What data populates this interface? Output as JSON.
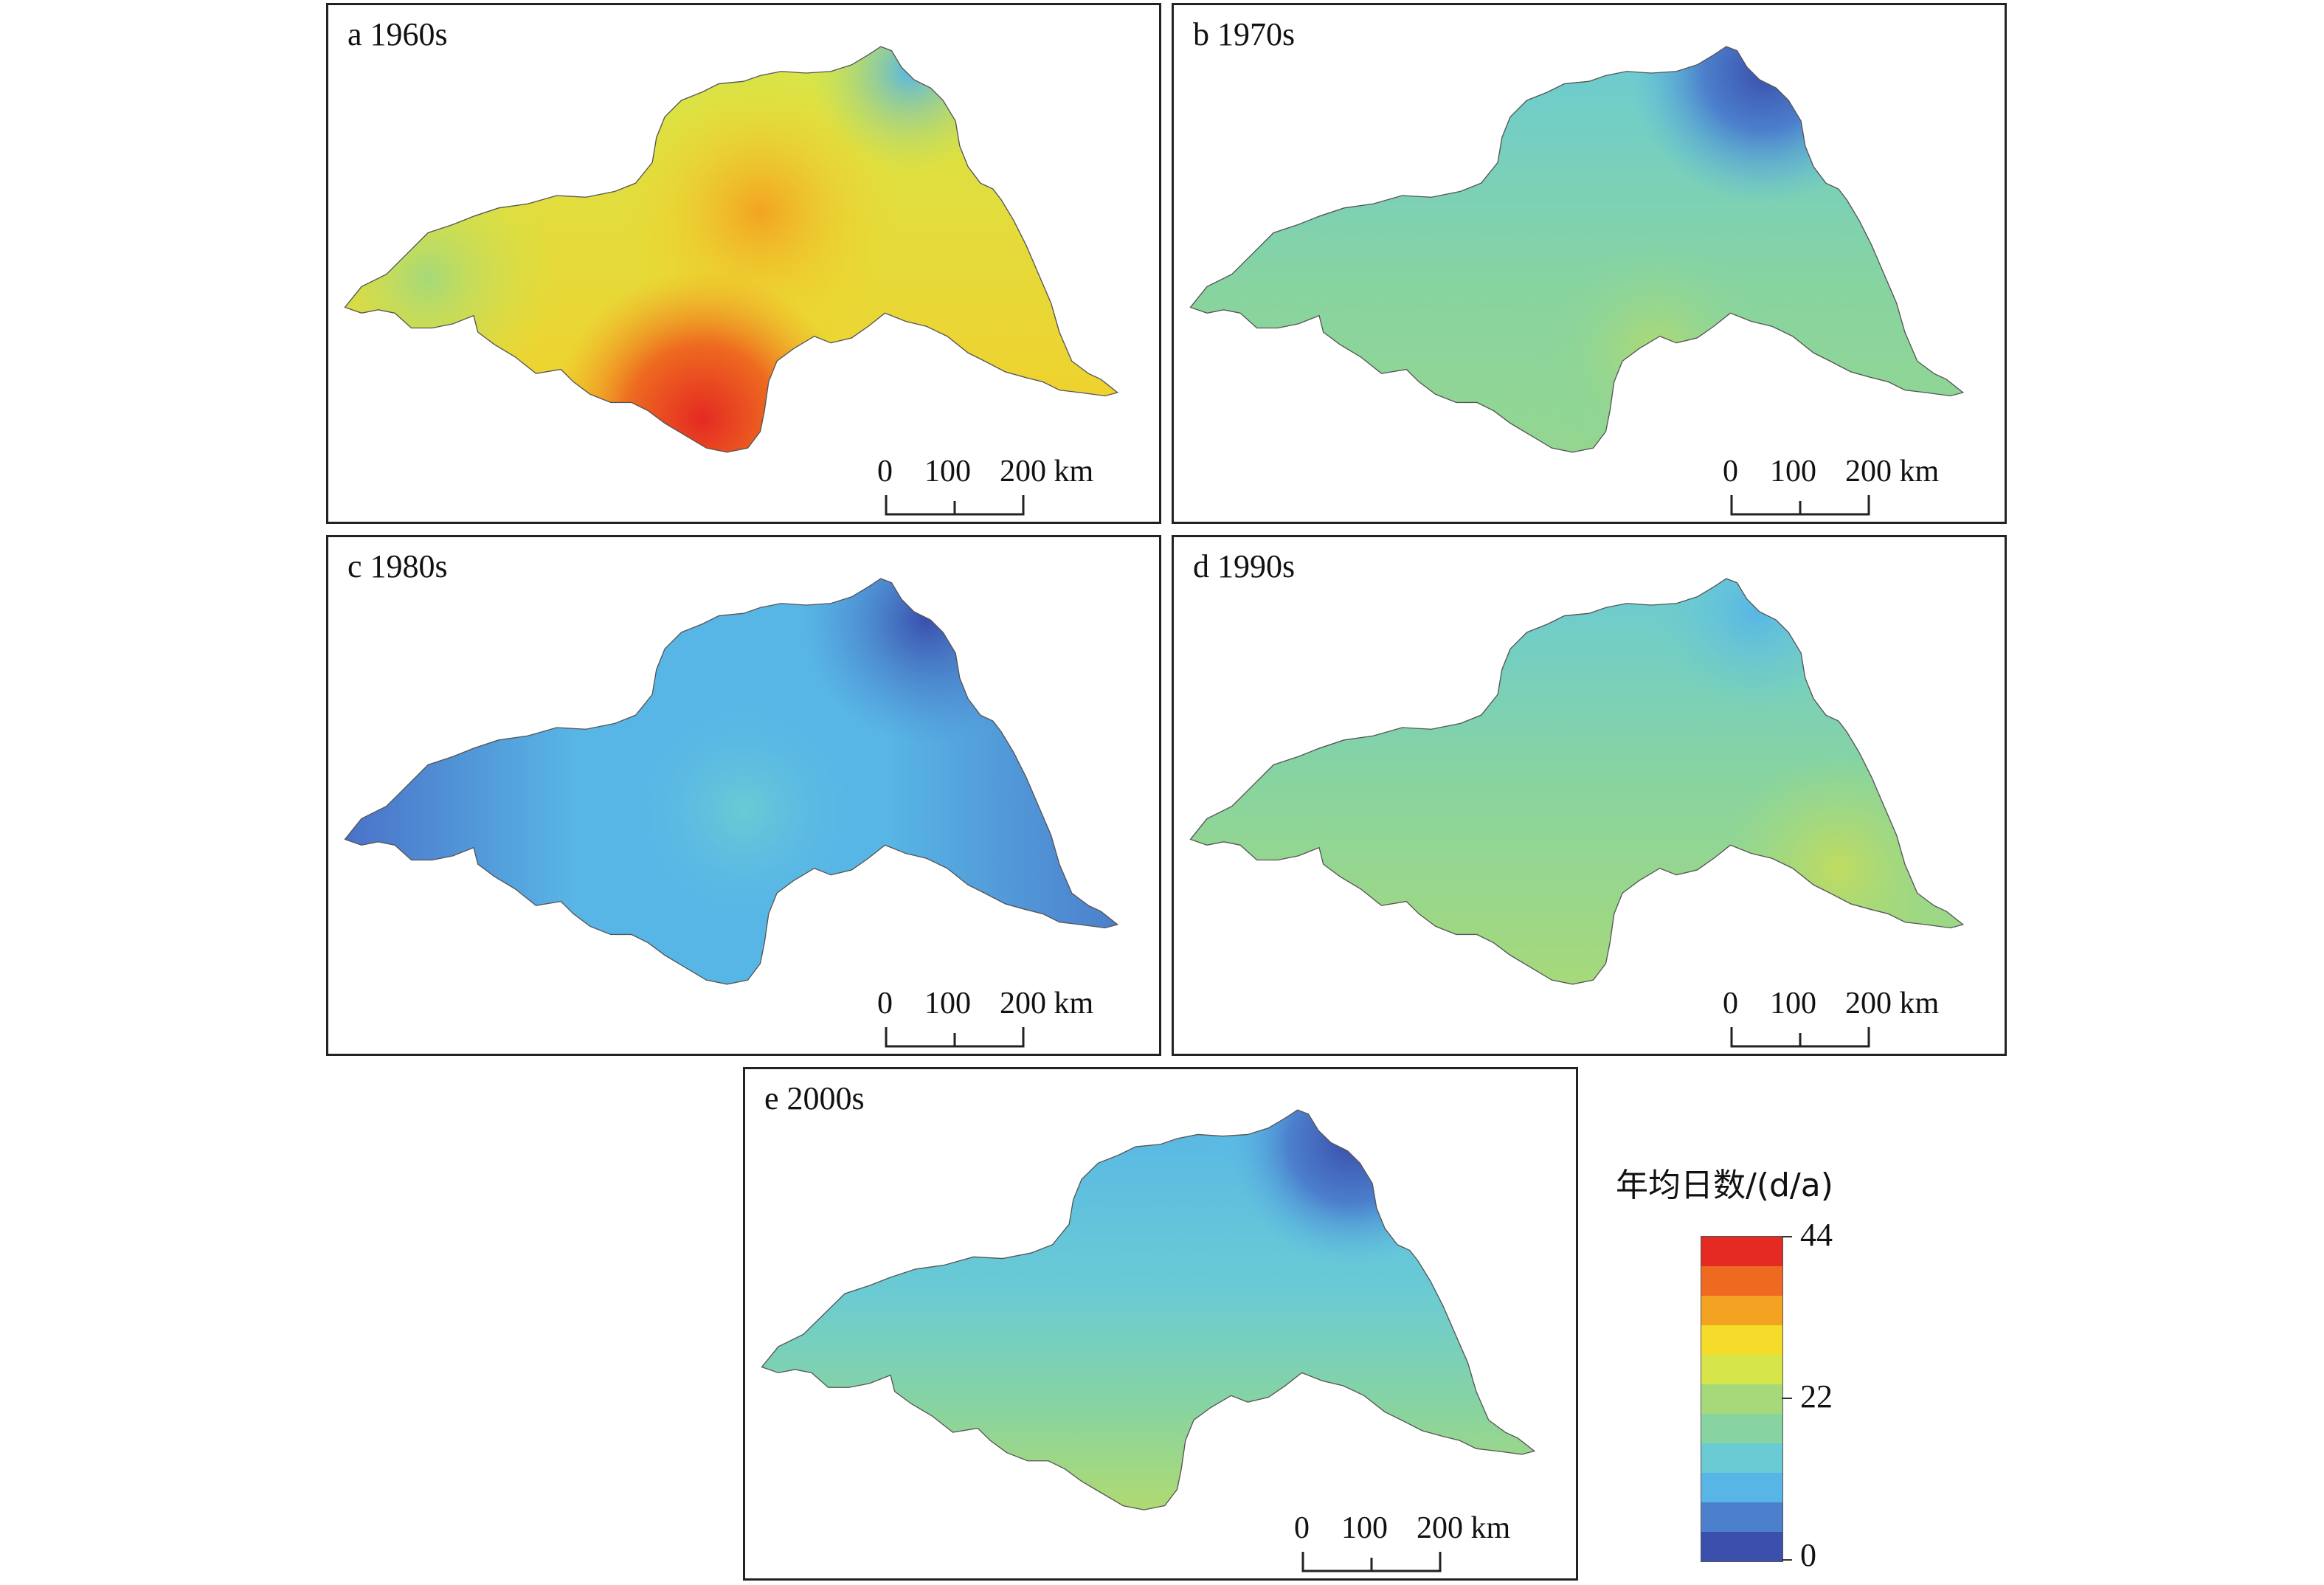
{
  "colors": {
    "ramp": [
      "#3a50ac",
      "#4c7fcc",
      "#58b6e6",
      "#6acbd4",
      "#88d4a0",
      "#a6d97a",
      "#d6e64a",
      "#f5dc2a",
      "#f3a222",
      "#ee6a20",
      "#e42a22"
    ]
  },
  "panels": [
    {
      "label": "a 1960s",
      "scale": {
        "t0": "0",
        "t1": "100",
        "t2": "200 km"
      }
    },
    {
      "label": "b 1970s",
      "scale": {
        "t0": "0",
        "t1": "100",
        "t2": "200 km"
      }
    },
    {
      "label": "c 1980s",
      "scale": {
        "t0": "0",
        "t1": "100",
        "t2": "200 km"
      }
    },
    {
      "label": "d 1990s",
      "scale": {
        "t0": "0",
        "t1": "100",
        "t2": "200 km"
      }
    },
    {
      "label": "e 2000s",
      "scale": {
        "t0": "0",
        "t1": "100",
        "t2": "200 km"
      }
    }
  ],
  "legend": {
    "title": "年均日数/(d/a)",
    "max": "44",
    "mid": "22",
    "min": "0"
  }
}
